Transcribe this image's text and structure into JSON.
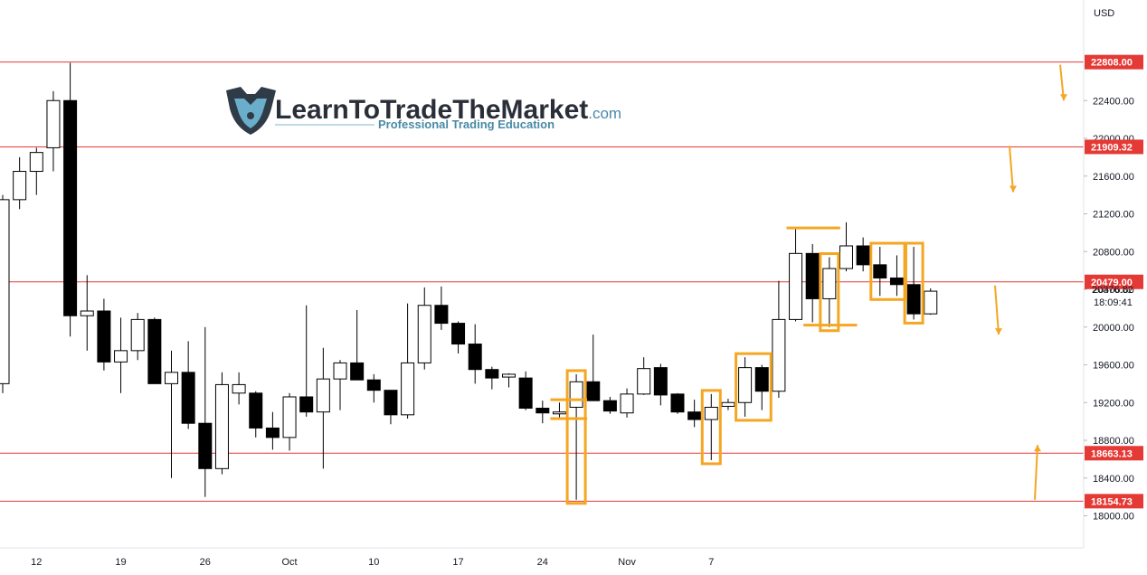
{
  "chart_data": {
    "type": "candlestick",
    "currency_label": "USD",
    "ylim": [
      17600,
      23300
    ],
    "y_ticks": [
      "18000.00",
      "18400.00",
      "18800.00",
      "19200.00",
      "19600.00",
      "20000.00",
      "20400.00",
      "20800.00",
      "21200.00",
      "21600.00",
      "22000.00",
      "22400.00"
    ],
    "x_ticks": [
      "12",
      "19",
      "26",
      "Oct",
      "10",
      "17",
      "24",
      "Nov",
      "7"
    ],
    "levels": [
      {
        "value": 22808.0,
        "label": "22808.00"
      },
      {
        "value": 21909.32,
        "label": "21909.32"
      },
      {
        "value": 20479.0,
        "label": "20479.00"
      },
      {
        "value": 18663.13,
        "label": "18663.13"
      },
      {
        "value": 18154.73,
        "label": "18154.73"
      }
    ],
    "current_price": {
      "value": 20376.82,
      "label": "20376.82",
      "countdown": "18:09:41"
    },
    "candles": [
      {
        "date": "Sep 8",
        "o": 19400,
        "h": 21400,
        "l": 19300,
        "c": 21350
      },
      {
        "date": "Sep 9",
        "o": 21350,
        "h": 21800,
        "l": 21250,
        "c": 21650
      },
      {
        "date": "Sep 12",
        "o": 21650,
        "h": 21900,
        "l": 21400,
        "c": 21850
      },
      {
        "date": "Sep 13",
        "o": 21900,
        "h": 22500,
        "l": 21650,
        "c": 22400
      },
      {
        "date": "Sep 14",
        "o": 22400,
        "h": 22800,
        "l": 19900,
        "c": 20120
      },
      {
        "date": "Sep 15",
        "o": 20120,
        "h": 20550,
        "l": 19750,
        "c": 20170
      },
      {
        "date": "Sep 16",
        "o": 20170,
        "h": 20300,
        "l": 19540,
        "c": 19630
      },
      {
        "date": "Sep 19",
        "o": 19630,
        "h": 20100,
        "l": 19300,
        "c": 19750
      },
      {
        "date": "Sep 20",
        "o": 19750,
        "h": 20150,
        "l": 19650,
        "c": 20080
      },
      {
        "date": "Sep 21",
        "o": 20080,
        "h": 20100,
        "l": 19400,
        "c": 19400
      },
      {
        "date": "Sep 22",
        "o": 19400,
        "h": 19750,
        "l": 18400,
        "c": 19520
      },
      {
        "date": "Sep 23",
        "o": 19520,
        "h": 19850,
        "l": 18920,
        "c": 18980
      },
      {
        "date": "Sep 26",
        "o": 18980,
        "h": 20000,
        "l": 18200,
        "c": 18500
      },
      {
        "date": "Sep 27",
        "o": 18500,
        "h": 19520,
        "l": 18440,
        "c": 19390
      },
      {
        "date": "Sep 28",
        "o": 19300,
        "h": 19520,
        "l": 19180,
        "c": 19390
      },
      {
        "date": "Sep 29",
        "o": 19300,
        "h": 19320,
        "l": 18830,
        "c": 18930
      },
      {
        "date": "Sep 30",
        "o": 18930,
        "h": 19100,
        "l": 18700,
        "c": 18830
      },
      {
        "date": "Oct 3",
        "o": 18830,
        "h": 19300,
        "l": 18690,
        "c": 19260
      },
      {
        "date": "Oct 4",
        "o": 19260,
        "h": 20230,
        "l": 19050,
        "c": 19100
      },
      {
        "date": "Oct 5",
        "o": 19100,
        "h": 19780,
        "l": 18500,
        "c": 19450
      },
      {
        "date": "Oct 6",
        "o": 19450,
        "h": 19650,
        "l": 19120,
        "c": 19620
      },
      {
        "date": "Oct 7",
        "o": 19620,
        "h": 20180,
        "l": 19440,
        "c": 19440
      },
      {
        "date": "Oct 10",
        "o": 19440,
        "h": 19500,
        "l": 19200,
        "c": 19330
      },
      {
        "date": "Oct 11",
        "o": 19330,
        "h": 19330,
        "l": 18970,
        "c": 19070
      },
      {
        "date": "Oct 12",
        "o": 19070,
        "h": 20250,
        "l": 19030,
        "c": 19620
      },
      {
        "date": "Oct 13",
        "o": 19620,
        "h": 20420,
        "l": 19550,
        "c": 20230
      },
      {
        "date": "Oct 14",
        "o": 20230,
        "h": 20430,
        "l": 19970,
        "c": 20040
      },
      {
        "date": "Oct 17",
        "o": 20040,
        "h": 20060,
        "l": 19720,
        "c": 19820
      },
      {
        "date": "Oct 18",
        "o": 19820,
        "h": 20030,
        "l": 19400,
        "c": 19550
      },
      {
        "date": "Oct 19",
        "o": 19550,
        "h": 19580,
        "l": 19340,
        "c": 19460
      },
      {
        "date": "Oct 20",
        "o": 19470,
        "h": 19510,
        "l": 19360,
        "c": 19500
      },
      {
        "date": "Oct 21",
        "o": 19460,
        "h": 19530,
        "l": 19120,
        "c": 19140
      },
      {
        "date": "Oct 24",
        "o": 19140,
        "h": 19220,
        "l": 18980,
        "c": 19090
      },
      {
        "date": "Oct 25",
        "o": 19080,
        "h": 19200,
        "l": 19040,
        "c": 19100
      },
      {
        "date": "Oct 26",
        "o": 19150,
        "h": 19500,
        "l": 18170,
        "c": 19420
      },
      {
        "date": "Oct 27",
        "o": 19420,
        "h": 19920,
        "l": 19250,
        "c": 19220
      },
      {
        "date": "Oct 28",
        "o": 19220,
        "h": 19260,
        "l": 19080,
        "c": 19110
      },
      {
        "date": "Oct 31",
        "o": 19090,
        "h": 19350,
        "l": 19040,
        "c": 19290
      },
      {
        "date": "Nov 1",
        "o": 19290,
        "h": 19680,
        "l": 19280,
        "c": 19560
      },
      {
        "date": "Nov 2",
        "o": 19570,
        "h": 19610,
        "l": 19170,
        "c": 19280
      },
      {
        "date": "Nov 3",
        "o": 19290,
        "h": 19300,
        "l": 19080,
        "c": 19100
      },
      {
        "date": "Nov 4",
        "o": 19100,
        "h": 19230,
        "l": 18940,
        "c": 19020
      },
      {
        "date": "Nov 7",
        "o": 19020,
        "h": 19290,
        "l": 18590,
        "c": 19150
      },
      {
        "date": "Nov 8",
        "o": 19160,
        "h": 19240,
        "l": 19120,
        "c": 19200
      },
      {
        "date": "Nov 9",
        "o": 19200,
        "h": 19680,
        "l": 19050,
        "c": 19570
      },
      {
        "date": "Nov 10",
        "o": 19570,
        "h": 19600,
        "l": 19120,
        "c": 19320
      },
      {
        "date": "Nov 11",
        "o": 19320,
        "h": 20490,
        "l": 19250,
        "c": 20080
      },
      {
        "date": "Nov 14",
        "o": 20080,
        "h": 21050,
        "l": 20060,
        "c": 20780
      },
      {
        "date": "Nov 15",
        "o": 20780,
        "h": 20880,
        "l": 20050,
        "c": 20300
      },
      {
        "date": "Nov 16",
        "o": 20300,
        "h": 20740,
        "l": 20000,
        "c": 20620
      },
      {
        "date": "Nov 17",
        "o": 20620,
        "h": 21110,
        "l": 20590,
        "c": 20860
      },
      {
        "date": "Nov 18",
        "o": 20860,
        "h": 20950,
        "l": 20590,
        "c": 20660
      },
      {
        "date": "Nov 21",
        "o": 20660,
        "h": 20850,
        "l": 20330,
        "c": 20520
      },
      {
        "date": "Nov 22",
        "o": 20520,
        "h": 20760,
        "l": 20330,
        "c": 20450
      },
      {
        "date": "Nov 23",
        "o": 20450,
        "h": 20850,
        "l": 20080,
        "c": 20140
      },
      {
        "date": "Nov 24",
        "o": 20140,
        "h": 20410,
        "l": 20130,
        "c": 20380
      }
    ],
    "arrows": [
      {
        "direction": "down",
        "from": 22780,
        "to": 22400
      },
      {
        "direction": "down",
        "from": 21920,
        "to": 21430
      },
      {
        "direction": "down",
        "from": 20440,
        "to": 19920
      },
      {
        "direction": "up",
        "from": 18170,
        "to": 18750
      }
    ],
    "colors": {
      "level_line": "#e53935",
      "level_tag": "#e53935",
      "highlight": "#f5a623",
      "bullish": "#ffffff",
      "bearish": "#000000"
    }
  },
  "logo": {
    "name_learn": "Learn",
    "name_to": "To",
    "name_trade": "Trade",
    "name_the": "The",
    "name_market": "Market",
    "domain": ".com",
    "tagline": "Professional Trading Education"
  }
}
